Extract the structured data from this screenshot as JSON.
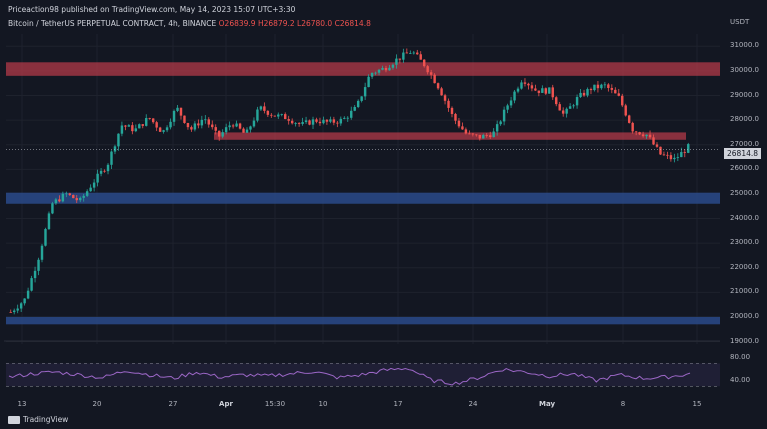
{
  "header": {
    "published": "Priceaction98 published on TradingView.com, May 14, 2023 15:07 UTC+3:30",
    "symbol": "Bitcoin / TetherUS PERPETUAL CONTRACT, 4h, BINANCE",
    "open": "O26839.9",
    "high": "H26879.2",
    "low": "L26780.0",
    "close": "C26814.8"
  },
  "axis": {
    "currency": "USDT",
    "price_ticks": [
      "31000.0",
      "30000.0",
      "29000.0",
      "28000.0",
      "27000.0",
      "26000.0",
      "25000.0",
      "24000.0",
      "23000.0",
      "22000.0",
      "21000.0",
      "20000.0",
      "19000.0"
    ],
    "last_price": "26814.8",
    "time_ticks": [
      "13",
      "20",
      "27",
      "Apr",
      "15:30",
      "10",
      "17",
      "24",
      "May",
      "8",
      "15"
    ],
    "rsi_ticks": [
      "80.00",
      "40.00"
    ]
  },
  "colors": {
    "background": "#131722",
    "up": "#26a69a",
    "down": "#ef5350",
    "resistance_zone": "#b23a48",
    "support_zone": "#2a4a8a",
    "rsi_line": "#9c67c7"
  },
  "footer": {
    "brand": "TradingView"
  },
  "chart_data": {
    "type": "candlestick",
    "y_range": [
      18900,
      31500
    ],
    "zones": [
      {
        "kind": "resistance",
        "from": 29800,
        "to": 30350
      },
      {
        "kind": "resistance",
        "from": 27200,
        "to": 27500
      },
      {
        "kind": "support",
        "from": 24600,
        "to": 25050
      },
      {
        "kind": "support",
        "from": 19700,
        "to": 20000
      }
    ],
    "price_path": [
      20200,
      20700,
      22400,
      24600,
      25000,
      24700,
      25500,
      26200,
      27800,
      27600,
      28100,
      27500,
      28500,
      27600,
      28100,
      27300,
      27900,
      27400,
      28500,
      28200,
      28100,
      27800,
      28000,
      27900,
      28000,
      28500,
      29900,
      30100,
      30500,
      30800,
      30200,
      29300,
      28100,
      27400,
      27300,
      27500,
      28700,
      29700,
      29200,
      29200,
      28200,
      28900,
      29300,
      29400,
      28900,
      27600,
      27400,
      26600,
      26400,
      26900
    ],
    "rsi": {
      "levels": [
        70,
        30
      ],
      "path": [
        46,
        52,
        55,
        50,
        45,
        58,
        50,
        44,
        55,
        46,
        50,
        48,
        52,
        56,
        45,
        50,
        58,
        62,
        40,
        35,
        45,
        60,
        55,
        48,
        52,
        40,
        50,
        44,
        46,
        52
      ]
    }
  }
}
